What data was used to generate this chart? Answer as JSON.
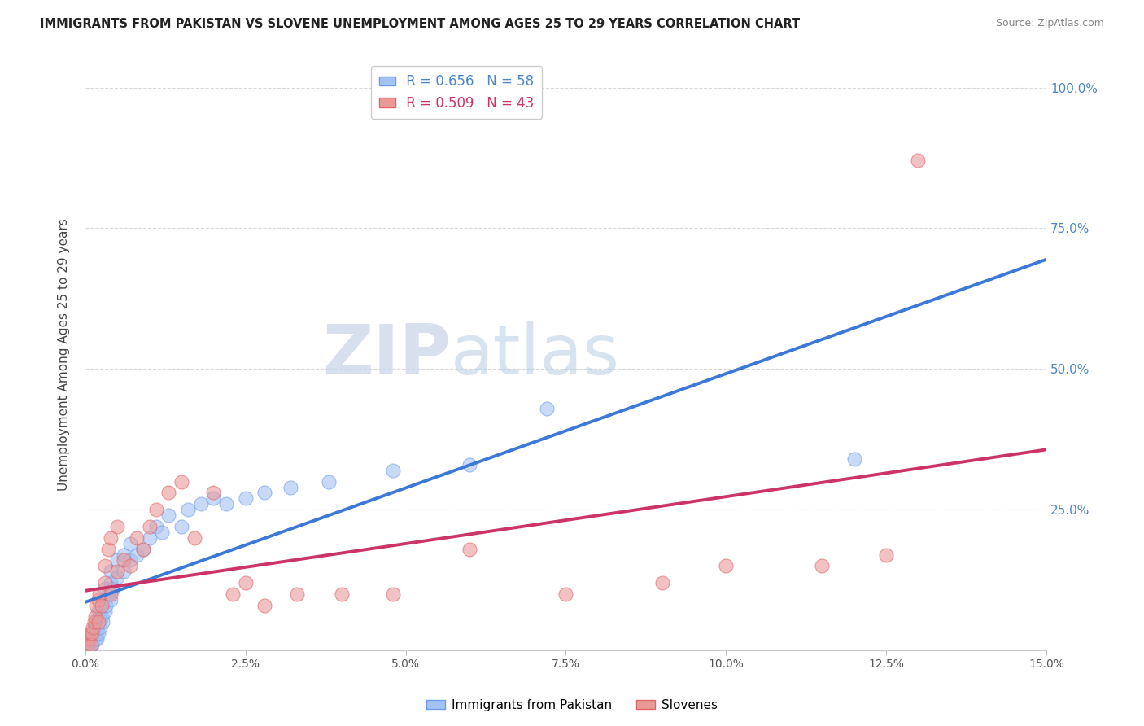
{
  "title": "IMMIGRANTS FROM PAKISTAN VS SLOVENE UNEMPLOYMENT AMONG AGES 25 TO 29 YEARS CORRELATION CHART",
  "source": "Source: ZipAtlas.com",
  "ylabel": "Unemployment Among Ages 25 to 29 years",
  "xlim": [
    0.0,
    0.15
  ],
  "ylim": [
    0.0,
    1.05
  ],
  "xtick_positions": [
    0.0,
    0.025,
    0.05,
    0.075,
    0.1,
    0.125,
    0.15
  ],
  "xtick_labels": [
    "0.0%",
    "2.5%",
    "5.0%",
    "7.5%",
    "10.0%",
    "12.5%",
    "15.0%"
  ],
  "ytick_positions": [
    0.0,
    0.25,
    0.5,
    0.75,
    1.0
  ],
  "ytick_labels": [
    "",
    "25.0%",
    "50.0%",
    "75.0%",
    "100.0%"
  ],
  "grid_color": "#d8d8d8",
  "background_color": "#ffffff",
  "blue_scatter_color": "#a4c2f4",
  "blue_scatter_edge": "#6d9eeb",
  "pink_scatter_color": "#ea9999",
  "pink_scatter_edge": "#e06666",
  "blue_line_color": "#3c78d8",
  "pink_line_color": "#cc3366",
  "R_blue": 0.656,
  "N_blue": 58,
  "R_pink": 0.509,
  "N_pink": 43,
  "legend_label_blue": "Immigrants from Pakistan",
  "legend_label_pink": "Slovenes",
  "blue_x": [
    0.0003,
    0.0005,
    0.0007,
    0.0008,
    0.0009,
    0.001,
    0.001,
    0.0012,
    0.0013,
    0.0014,
    0.0015,
    0.0015,
    0.0016,
    0.0017,
    0.0018,
    0.0018,
    0.002,
    0.002,
    0.002,
    0.0022,
    0.0023,
    0.0025,
    0.0025,
    0.0027,
    0.003,
    0.003,
    0.003,
    0.0032,
    0.0035,
    0.004,
    0.004,
    0.004,
    0.0043,
    0.005,
    0.005,
    0.006,
    0.006,
    0.007,
    0.007,
    0.008,
    0.009,
    0.01,
    0.011,
    0.012,
    0.013,
    0.015,
    0.016,
    0.018,
    0.02,
    0.022,
    0.025,
    0.028,
    0.032,
    0.038,
    0.048,
    0.06,
    0.072,
    0.12
  ],
  "blue_y": [
    0.01,
    0.01,
    0.02,
    0.02,
    0.01,
    0.01,
    0.03,
    0.02,
    0.03,
    0.04,
    0.02,
    0.04,
    0.03,
    0.05,
    0.04,
    0.02,
    0.03,
    0.05,
    0.07,
    0.06,
    0.04,
    0.06,
    0.08,
    0.05,
    0.07,
    0.09,
    0.11,
    0.08,
    0.1,
    0.09,
    0.12,
    0.14,
    0.11,
    0.13,
    0.16,
    0.14,
    0.17,
    0.16,
    0.19,
    0.17,
    0.18,
    0.2,
    0.22,
    0.21,
    0.24,
    0.22,
    0.25,
    0.26,
    0.27,
    0.26,
    0.27,
    0.28,
    0.29,
    0.3,
    0.32,
    0.33,
    0.43,
    0.34
  ],
  "pink_x": [
    0.0003,
    0.0005,
    0.0007,
    0.0009,
    0.001,
    0.0012,
    0.0014,
    0.0015,
    0.0017,
    0.002,
    0.002,
    0.0022,
    0.0025,
    0.003,
    0.003,
    0.0035,
    0.004,
    0.004,
    0.005,
    0.005,
    0.006,
    0.007,
    0.008,
    0.009,
    0.01,
    0.011,
    0.013,
    0.015,
    0.017,
    0.02,
    0.023,
    0.025,
    0.028,
    0.033,
    0.04,
    0.048,
    0.06,
    0.075,
    0.09,
    0.1,
    0.115,
    0.125,
    0.13
  ],
  "pink_y": [
    0.01,
    0.02,
    0.03,
    0.01,
    0.03,
    0.04,
    0.05,
    0.06,
    0.08,
    0.05,
    0.09,
    0.1,
    0.08,
    0.12,
    0.15,
    0.18,
    0.1,
    0.2,
    0.14,
    0.22,
    0.16,
    0.15,
    0.2,
    0.18,
    0.22,
    0.25,
    0.28,
    0.3,
    0.2,
    0.28,
    0.1,
    0.12,
    0.08,
    0.1,
    0.1,
    0.1,
    0.18,
    0.1,
    0.12,
    0.15,
    0.15,
    0.17,
    0.87
  ],
  "watermark_zip": "ZIP",
  "watermark_atlas": "atlas"
}
